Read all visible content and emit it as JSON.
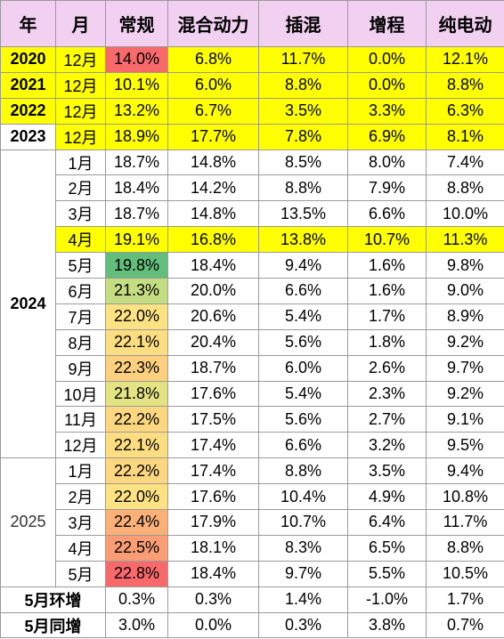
{
  "table": {
    "header": [
      "年",
      "月",
      "常规",
      "混合动力",
      "插混",
      "增程",
      "纯电动"
    ],
    "header_fill": "#f2d0f2",
    "groups": [
      {
        "year": "2020",
        "rows": [
          {
            "month": "12月",
            "values": [
              "14.0%",
              "6.8%",
              "11.7%",
              "0.0%",
              "12.1%"
            ],
            "fill": "#ffff00",
            "first_fill": "#f8696b"
          }
        ]
      },
      {
        "year": "2021",
        "rows": [
          {
            "month": "12月",
            "values": [
              "10.1%",
              "6.0%",
              "8.8%",
              "0.0%",
              "8.8%"
            ],
            "fill": "#ffff00"
          }
        ]
      },
      {
        "year": "2022",
        "rows": [
          {
            "month": "12月",
            "values": [
              "13.2%",
              "6.7%",
              "3.5%",
              "3.3%",
              "6.3%"
            ],
            "fill": "#ffff00"
          }
        ]
      },
      {
        "year": "2023",
        "rows": [
          {
            "month": "12月",
            "values": [
              "18.9%",
              "17.7%",
              "7.8%",
              "6.9%",
              "8.1%"
            ],
            "fill": "#ffff00",
            "from_col": 1
          }
        ]
      },
      {
        "year": "2024",
        "rows": [
          {
            "month": "1月",
            "values": [
              "18.7%",
              "14.8%",
              "8.5%",
              "8.0%",
              "7.4%"
            ]
          },
          {
            "month": "2月",
            "values": [
              "18.4%",
              "14.2%",
              "8.8%",
              "7.9%",
              "8.8%"
            ]
          },
          {
            "month": "3月",
            "values": [
              "18.7%",
              "14.8%",
              "13.5%",
              "6.6%",
              "10.0%"
            ]
          },
          {
            "month": "4月",
            "values": [
              "19.1%",
              "16.8%",
              "13.8%",
              "10.7%",
              "11.3%"
            ],
            "fill": "#ffff00"
          },
          {
            "month": "5月",
            "values": [
              "19.8%",
              "18.4%",
              "9.4%",
              "1.6%",
              "9.8%"
            ],
            "first_fill": "#63be7b"
          },
          {
            "month": "6月",
            "values": [
              "21.3%",
              "20.0%",
              "6.6%",
              "1.6%",
              "9.0%"
            ],
            "first_fill": "#c5dd82"
          },
          {
            "month": "7月",
            "values": [
              "22.0%",
              "20.6%",
              "5.4%",
              "1.7%",
              "8.9%"
            ],
            "first_fill": "#fde283"
          },
          {
            "month": "8月",
            "values": [
              "22.1%",
              "20.4%",
              "5.6%",
              "1.8%",
              "9.2%"
            ],
            "first_fill": "#fddd82"
          },
          {
            "month": "9月",
            "values": [
              "22.3%",
              "18.7%",
              "6.0%",
              "2.6%",
              "9.7%"
            ],
            "first_fill": "#fdd07f"
          },
          {
            "month": "10月",
            "values": [
              "21.8%",
              "17.6%",
              "5.4%",
              "2.3%",
              "9.2%"
            ],
            "first_fill": "#e3e383"
          },
          {
            "month": "11月",
            "values": [
              "22.2%",
              "17.5%",
              "5.6%",
              "2.7%",
              "9.1%"
            ],
            "first_fill": "#fdd680"
          },
          {
            "month": "12月",
            "values": [
              "22.1%",
              "17.4%",
              "6.6%",
              "3.2%",
              "9.5%"
            ],
            "first_fill": "#fddd82"
          }
        ]
      },
      {
        "year": "2025",
        "rows": [
          {
            "month": "1月",
            "values": [
              "22.2%",
              "17.4%",
              "8.8%",
              "3.5%",
              "9.4%"
            ],
            "first_fill": "#fdd680"
          },
          {
            "month": "2月",
            "values": [
              "22.0%",
              "17.6%",
              "10.4%",
              "4.9%",
              "10.8%"
            ],
            "first_fill": "#fde283"
          },
          {
            "month": "3月",
            "values": [
              "22.4%",
              "17.9%",
              "10.7%",
              "6.4%",
              "11.7%"
            ],
            "first_fill": "#fbb079"
          },
          {
            "month": "4月",
            "values": [
              "22.5%",
              "18.1%",
              "8.3%",
              "6.5%",
              "8.8%"
            ],
            "first_fill": "#fa9d75"
          },
          {
            "month": "5月",
            "values": [
              "22.8%",
              "18.4%",
              "9.7%",
              "5.5%",
              "10.5%"
            ],
            "first_fill": "#f8696b"
          }
        ]
      }
    ],
    "footer": [
      {
        "label": "5月环增",
        "values": [
          "0.3%",
          "0.3%",
          "1.4%",
          "-1.0%",
          "1.7%"
        ]
      },
      {
        "label": "5月同增",
        "values": [
          "3.0%",
          "0.0%",
          "0.3%",
          "3.8%",
          "0.7%"
        ]
      }
    ]
  }
}
